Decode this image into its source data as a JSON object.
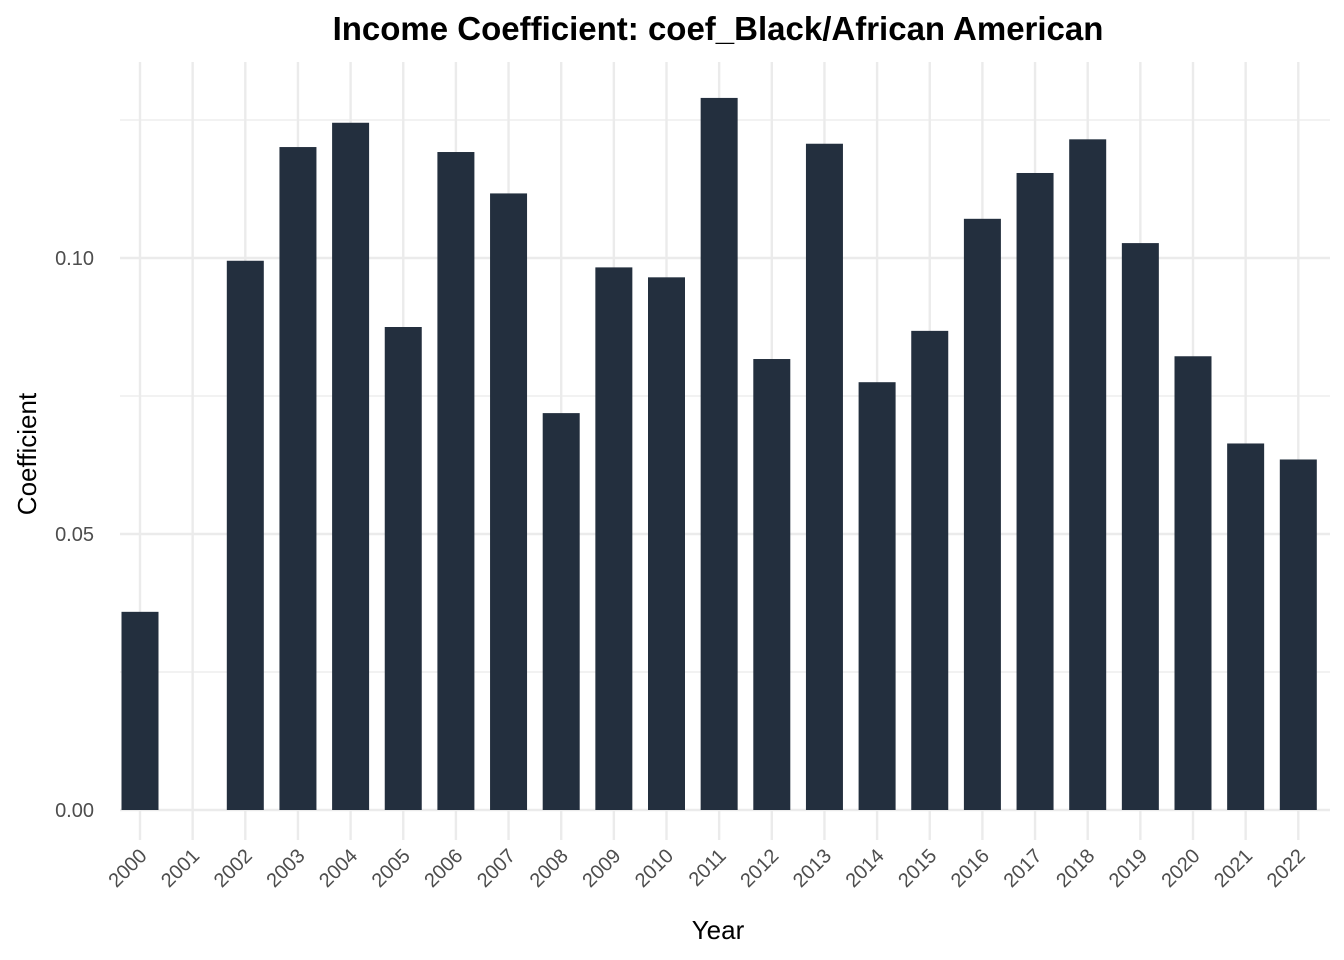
{
  "chart_data": {
    "type": "bar",
    "title": "Income Coefficient: coef_Black/African American",
    "xlabel": "Year",
    "ylabel": "Coefficient",
    "categories": [
      "2000",
      "2001",
      "2002",
      "2003",
      "2004",
      "2005",
      "2006",
      "2007",
      "2008",
      "2009",
      "2010",
      "2011",
      "2012",
      "2013",
      "2014",
      "2015",
      "2016",
      "2017",
      "2018",
      "2019",
      "2020",
      "2021",
      "2022"
    ],
    "values": [
      0.0359,
      null,
      0.0995,
      0.1201,
      0.1245,
      0.0875,
      0.1192,
      0.1117,
      0.0719,
      0.0983,
      0.0965,
      0.129,
      0.0817,
      0.1207,
      0.0775,
      0.0868,
      0.1071,
      0.1154,
      0.1215,
      0.1027,
      0.0822,
      0.0664,
      0.0635
    ],
    "yticks": [
      0.0,
      0.05,
      0.1
    ],
    "ytick_labels": [
      "0.00",
      "0.05",
      "0.10"
    ],
    "ylim": [
      -0.0055,
      0.135
    ],
    "grid": true,
    "colors": {
      "bar": "#232f3e",
      "grid": "#ebebeb"
    }
  }
}
